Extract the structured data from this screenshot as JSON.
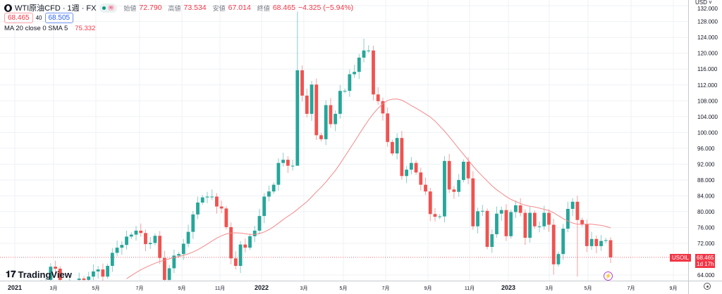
{
  "header": {
    "symbol": "WTI原油CFD · 1週 · FX",
    "open_label": "始値",
    "open": "72.790",
    "high_label": "高値",
    "high": "73.534",
    "low_label": "安値",
    "low": "67.014",
    "close_label": "終値",
    "close": "68.465",
    "change": "−4.325 (−5.94%)",
    "bid": "68.465",
    "spread": "40",
    "ask": "68.505",
    "indicator": "MA 20 close 0 SMA 5",
    "indicator_value": "75.332",
    "pink_badge": "≋"
  },
  "axis": {
    "currency": "USD ˅",
    "price_ticks": [
      "64.000",
      "72.000",
      "76.000",
      "80.000",
      "84.000",
      "88.000",
      "92.000",
      "96.000",
      "100.000",
      "104.000",
      "108.000",
      "112.000",
      "116.000",
      "120.000",
      "124.000",
      "128.000",
      "132.000"
    ],
    "time_labels": [
      "2021",
      "3月",
      "5月",
      "7月",
      "9月",
      "11月",
      "2022",
      "3月",
      "5月",
      "7月",
      "9月",
      "11月",
      "2023",
      "3月",
      "5月",
      "7月",
      "9月"
    ],
    "symbol_tag": "USOIL",
    "last_price": "68.465",
    "countdown": "1d 17h"
  },
  "branding": {
    "logo": "TradingView"
  },
  "icons": {
    "lightning": "⚡"
  },
  "colors": {
    "up": "#26a69a",
    "down": "#ef5350",
    "ma": "#f4898b",
    "grid": "#eef1f5"
  },
  "chart_data": {
    "type": "candlestick",
    "title": "WTI原油CFD · 1週 · FX",
    "interval": "1 week",
    "start": "2021-01-04",
    "ylim": [
      62,
      132
    ],
    "closes": [
      52.2,
      52.4,
      52.3,
      56.9,
      59.5,
      59.9,
      61.5,
      61.5,
      66.1,
      65.6,
      61.4,
      60.9,
      61.4,
      59.3,
      63.1,
      62.1,
      63.6,
      64.9,
      65.4,
      63.6,
      66.3,
      69.6,
      70.9,
      71.6,
      73.7,
      74.2,
      75.2,
      74.6,
      71.8,
      72.1,
      73.9,
      68.3,
      62.1,
      65.7,
      68.9,
      69.3,
      71.9,
      74.9,
      79.3,
      82.3,
      83.6,
      83.8,
      83.8,
      81.3,
      80.8,
      76.1,
      68.2,
      66.3,
      71.7,
      70.9,
      73.8,
      75.2,
      78.9,
      83.8,
      85.1,
      86.8,
      92.3,
      93.1,
      91.6,
      91.6,
      115.7,
      109.3,
      104.7,
      112.1,
      99.3,
      98.3,
      106.9,
      102.1,
      104.7,
      110.5,
      110.5,
      114.7,
      115.3,
      118.9,
      120.7,
      120.7,
      109.6,
      107.9,
      104.8,
      97.6,
      94.7,
      98.6,
      89.0,
      90.6,
      92.3,
      89.9,
      86.8,
      85.1,
      79.4,
      78.7,
      78.8,
      92.8,
      85.6,
      85.0,
      88.0,
      92.6,
      88.4,
      76.3,
      80.1,
      80.2,
      71.1,
      74.3,
      79.5,
      80.4,
      73.8,
      79.9,
      81.6,
      79.7,
      73.4,
      79.7,
      76.3,
      76.3,
      79.7,
      76.7,
      66.7,
      69.3,
      75.7,
      80.7,
      82.5,
      77.9,
      76.8,
      71.3,
      73.1,
      71.3,
      72.6,
      72.79,
      68.465
    ],
    "default_wick": 1.5,
    "overrides": {
      "60": {
        "high": 130.5,
        "low": 92.0
      },
      "74": {
        "high": 123.7
      },
      "75": {
        "high": 122.0
      },
      "114": {
        "low": 64.1
      },
      "119": {
        "low": 63.6
      },
      "126": {
        "open": 72.79,
        "high": 73.534,
        "low": 67.014,
        "close": 68.465
      }
    },
    "ma": {
      "length": 20,
      "smoothing": 5,
      "last": 75.332
    }
  }
}
